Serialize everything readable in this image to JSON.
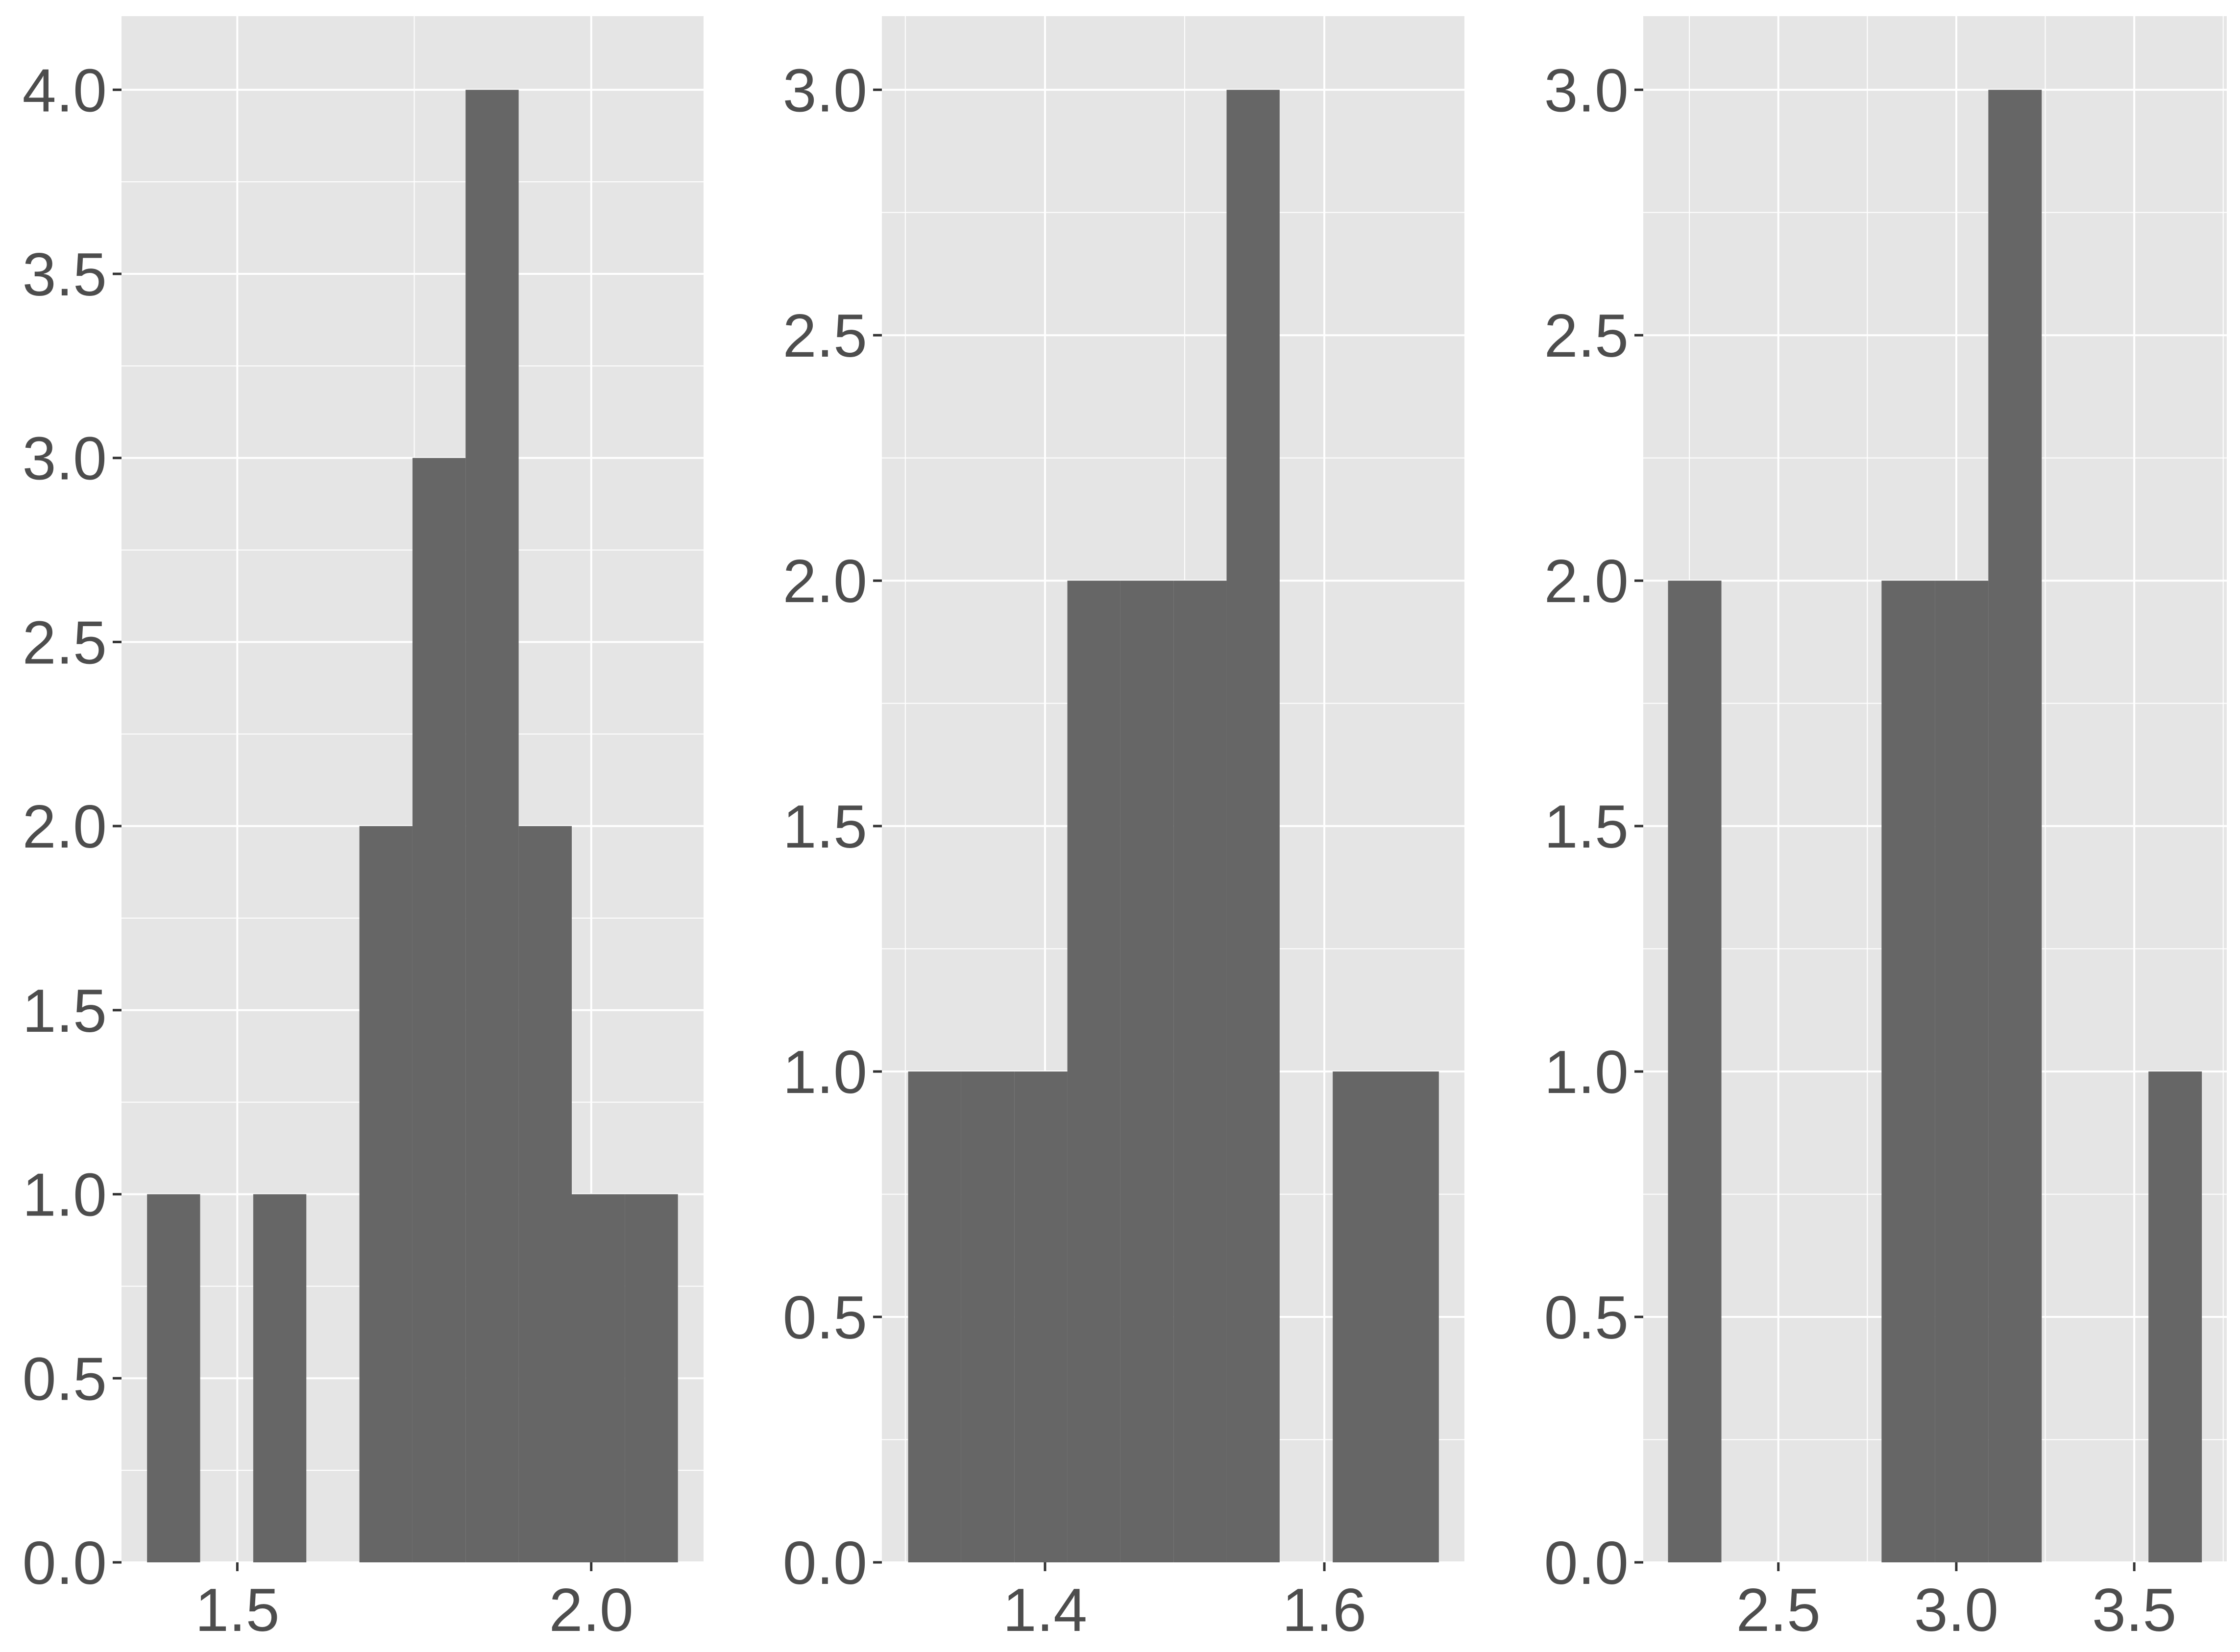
{
  "chart_data": [
    {
      "type": "bar",
      "title": "",
      "xlabel": "",
      "ylabel": "",
      "bin_width": 0.075,
      "bins": [
        {
          "x0": 1.3725,
          "x1": 1.4475,
          "count": 1
        },
        {
          "x0": 1.4475,
          "x1": 1.5225,
          "count": 0
        },
        {
          "x0": 1.5225,
          "x1": 1.5975,
          "count": 1
        },
        {
          "x0": 1.5975,
          "x1": 1.6725,
          "count": 0
        },
        {
          "x0": 1.6725,
          "x1": 1.7475,
          "count": 2
        },
        {
          "x0": 1.7475,
          "x1": 1.8225,
          "count": 3
        },
        {
          "x0": 1.8225,
          "x1": 1.8975,
          "count": 4
        },
        {
          "x0": 1.8975,
          "x1": 1.9725,
          "count": 2
        },
        {
          "x0": 1.9725,
          "x1": 2.0475,
          "count": 1
        },
        {
          "x0": 2.0475,
          "x1": 2.1225,
          "count": 1
        }
      ],
      "xlim": [
        1.3364,
        2.1587
      ],
      "ylim": [
        0,
        4.2
      ],
      "x_ticks": [
        1.5,
        2.0
      ],
      "x_tick_labels": [
        "1.5",
        "2.0"
      ],
      "x_minor": [
        1.75
      ],
      "y_ticks": [
        0,
        0.5,
        1.0,
        1.5,
        2.0,
        2.5,
        3.0,
        3.5,
        4.0
      ],
      "y_tick_labels": [
        "0.0",
        "0.5",
        "1.0",
        "1.5",
        "2.0",
        "2.5",
        "3.0",
        "3.5",
        "4.0"
      ],
      "grid": true,
      "colors": {
        "bar": "#666666",
        "panel": "#e5e5e5",
        "grid": "#ffffff",
        "text": "#4d4d4d"
      }
    },
    {
      "type": "bar",
      "title": "",
      "xlabel": "",
      "ylabel": "",
      "bin_width": 0.038,
      "bins": [
        {
          "x0": 1.302,
          "x1": 1.34,
          "count": 1
        },
        {
          "x0": 1.34,
          "x1": 1.378,
          "count": 1
        },
        {
          "x0": 1.378,
          "x1": 1.416,
          "count": 1
        },
        {
          "x0": 1.416,
          "x1": 1.454,
          "count": 2
        },
        {
          "x0": 1.454,
          "x1": 1.492,
          "count": 2
        },
        {
          "x0": 1.492,
          "x1": 1.53,
          "count": 2
        },
        {
          "x0": 1.53,
          "x1": 1.568,
          "count": 3
        },
        {
          "x0": 1.568,
          "x1": 1.606,
          "count": 0
        },
        {
          "x0": 1.606,
          "x1": 1.644,
          "count": 1
        },
        {
          "x0": 1.644,
          "x1": 1.682,
          "count": 1
        }
      ],
      "xlim": [
        1.2832,
        1.7003
      ],
      "ylim": [
        0,
        3.15
      ],
      "x_ticks": [
        1.4,
        1.6
      ],
      "x_tick_labels": [
        "1.4",
        "1.6"
      ],
      "x_minor": [
        1.3,
        1.5
      ],
      "y_ticks": [
        0,
        0.5,
        1.0,
        1.5,
        2.0,
        2.5,
        3.0
      ],
      "y_tick_labels": [
        "0.0",
        "0.5",
        "1.0",
        "1.5",
        "2.0",
        "2.5",
        "3.0"
      ],
      "grid": true,
      "colors": {
        "bar": "#666666",
        "panel": "#e5e5e5",
        "grid": "#ffffff",
        "text": "#4d4d4d"
      }
    },
    {
      "type": "bar",
      "title": "",
      "xlabel": "",
      "ylabel": "",
      "bin_width": 0.15,
      "bins": [
        {
          "x0": 2.19,
          "x1": 2.34,
          "count": 2
        },
        {
          "x0": 2.34,
          "x1": 2.49,
          "count": 0
        },
        {
          "x0": 2.49,
          "x1": 2.64,
          "count": 0
        },
        {
          "x0": 2.64,
          "x1": 2.79,
          "count": 0
        },
        {
          "x0": 2.79,
          "x1": 2.94,
          "count": 2
        },
        {
          "x0": 2.94,
          "x1": 3.09,
          "count": 2
        },
        {
          "x0": 3.09,
          "x1": 3.24,
          "count": 3
        },
        {
          "x0": 3.24,
          "x1": 3.39,
          "count": 0
        },
        {
          "x0": 3.39,
          "x1": 3.54,
          "count": 0
        },
        {
          "x0": 3.54,
          "x1": 3.69,
          "count": 1
        }
      ],
      "xlim": [
        2.1204,
        3.76
      ],
      "ylim": [
        0,
        3.15
      ],
      "x_ticks": [
        2.5,
        3.0,
        3.5
      ],
      "x_tick_labels": [
        "2.5",
        "3.0",
        "3.5"
      ],
      "x_minor": [
        2.25,
        2.75,
        3.25,
        3.75
      ],
      "y_ticks": [
        0,
        0.5,
        1.0,
        1.5,
        2.0,
        2.5,
        3.0
      ],
      "y_tick_labels": [
        "0.0",
        "0.5",
        "1.0",
        "1.5",
        "2.0",
        "2.5",
        "3.0"
      ],
      "grid": true,
      "colors": {
        "bar": "#666666",
        "panel": "#e5e5e5",
        "grid": "#ffffff",
        "text": "#4d4d4d"
      }
    }
  ]
}
